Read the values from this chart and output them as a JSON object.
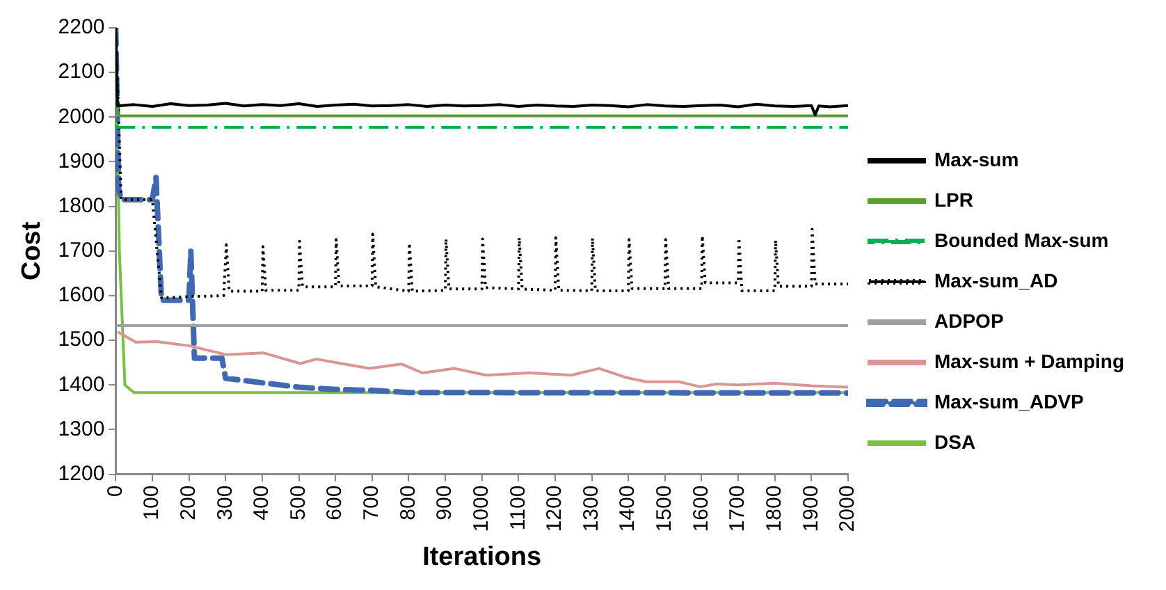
{
  "chart_data": {
    "type": "line",
    "xlabel": "Iterations",
    "ylabel": "Cost",
    "xlim": [
      0,
      2000
    ],
    "xticks": [
      0,
      100,
      200,
      300,
      400,
      500,
      600,
      700,
      800,
      900,
      1000,
      1100,
      1200,
      1300,
      1400,
      1500,
      1600,
      1700,
      1800,
      1900,
      2000
    ],
    "ylim": [
      1200,
      2200
    ],
    "yticks": [
      1200,
      1300,
      1400,
      1500,
      1600,
      1700,
      1800,
      1900,
      2000,
      2100,
      2200
    ],
    "grid": false,
    "legend": "right",
    "marker": "none",
    "series": [
      {
        "name": "Max-sum",
        "color": "#000000",
        "line_style": "solid",
        "x": [
          0,
          5,
          50,
          100,
          150,
          200,
          250,
          300,
          350,
          400,
          450,
          500,
          550,
          600,
          650,
          700,
          750,
          800,
          850,
          900,
          950,
          1000,
          1050,
          1100,
          1150,
          1200,
          1250,
          1300,
          1350,
          1400,
          1450,
          1500,
          1550,
          1600,
          1650,
          1700,
          1750,
          1800,
          1850,
          1900,
          1910,
          1920,
          1950,
          2000
        ],
        "values": [
          2200,
          2025,
          2028,
          2024,
          2030,
          2026,
          2027,
          2031,
          2025,
          2028,
          2026,
          2030,
          2024,
          2027,
          2029,
          2025,
          2026,
          2028,
          2024,
          2027,
          2025,
          2026,
          2028,
          2024,
          2027,
          2025,
          2024,
          2027,
          2026,
          2023,
          2028,
          2025,
          2024,
          2026,
          2027,
          2023,
          2029,
          2025,
          2024,
          2026,
          2005,
          2025,
          2023,
          2026
        ]
      },
      {
        "name": "LPR",
        "color": "#5e9b32",
        "line_style": "solid",
        "x": [
          0,
          5,
          2000
        ],
        "values": [
          2200,
          2003,
          2003
        ]
      },
      {
        "name": "Bounded Max-sum",
        "color": "#00b050",
        "line_style": "dashdot",
        "x": [
          0,
          2000
        ],
        "values": [
          1977,
          1977
        ]
      },
      {
        "name": "Max-sum_AD",
        "color": "#000000",
        "line_style": "dotted",
        "x": [
          0,
          15,
          100,
          125,
          200,
          295,
          302,
          310,
          400,
          402,
          410,
          500,
          502,
          510,
          600,
          602,
          610,
          700,
          702,
          710,
          800,
          802,
          810,
          900,
          902,
          910,
          1000,
          1002,
          1010,
          1100,
          1102,
          1110,
          1200,
          1202,
          1210,
          1300,
          1302,
          1310,
          1400,
          1402,
          1410,
          1500,
          1502,
          1510,
          1600,
          1602,
          1610,
          1700,
          1702,
          1710,
          1800,
          1802,
          1810,
          1900,
          1902,
          1910,
          2000
        ],
        "values": [
          2200,
          1815,
          1815,
          1595,
          1598,
          1600,
          1714,
          1610,
          1610,
          1710,
          1612,
          1612,
          1722,
          1620,
          1620,
          1726,
          1622,
          1622,
          1738,
          1620,
          1610,
          1718,
          1610,
          1612,
          1727,
          1615,
          1615,
          1727,
          1618,
          1615,
          1730,
          1615,
          1612,
          1730,
          1612,
          1611,
          1729,
          1611,
          1611,
          1726,
          1616,
          1616,
          1726,
          1616,
          1616,
          1734,
          1629,
          1629,
          1729,
          1611,
          1611,
          1724,
          1621,
          1621,
          1749,
          1626,
          1626
        ]
      },
      {
        "name": "ADPOP",
        "color": "#a0a0a0",
        "line_style": "solid",
        "x": [
          0,
          2000
        ],
        "values": [
          1533,
          1533
        ]
      },
      {
        "name": "Max-sum + Damping",
        "color": "#d99694",
        "line_style": "solid",
        "x": [
          5,
          55,
          113,
          200,
          301,
          403,
          504,
          548,
          693,
          780,
          838,
          925,
          1012,
          1128,
          1244,
          1320,
          1393,
          1451,
          1539,
          1596,
          1641,
          1700,
          1800,
          1900,
          2000
        ],
        "values": [
          1519,
          1496,
          1497,
          1488,
          1468,
          1472,
          1448,
          1458,
          1437,
          1447,
          1427,
          1437,
          1422,
          1427,
          1422,
          1437,
          1417,
          1407,
          1407,
          1396,
          1402,
          1400,
          1404,
          1398,
          1395
        ]
      },
      {
        "name": "Max-sum_ADVP",
        "color": "#4069b0",
        "line_style": "dashed",
        "x": [
          0,
          8,
          15,
          100,
          110,
          125,
          200,
          205,
          215,
          290,
          300,
          400,
          500,
          600,
          700,
          800,
          2000
        ],
        "values": [
          2200,
          1840,
          1815,
          1815,
          1865,
          1590,
          1590,
          1700,
          1460,
          1460,
          1415,
          1405,
          1395,
          1390,
          1388,
          1383,
          1382
        ]
      },
      {
        "name": "DSA",
        "color": "#77c043",
        "line_style": "solid",
        "x": [
          0,
          10,
          25,
          50,
          2000
        ],
        "values": [
          2200,
          1700,
          1400,
          1383,
          1383
        ]
      }
    ]
  }
}
